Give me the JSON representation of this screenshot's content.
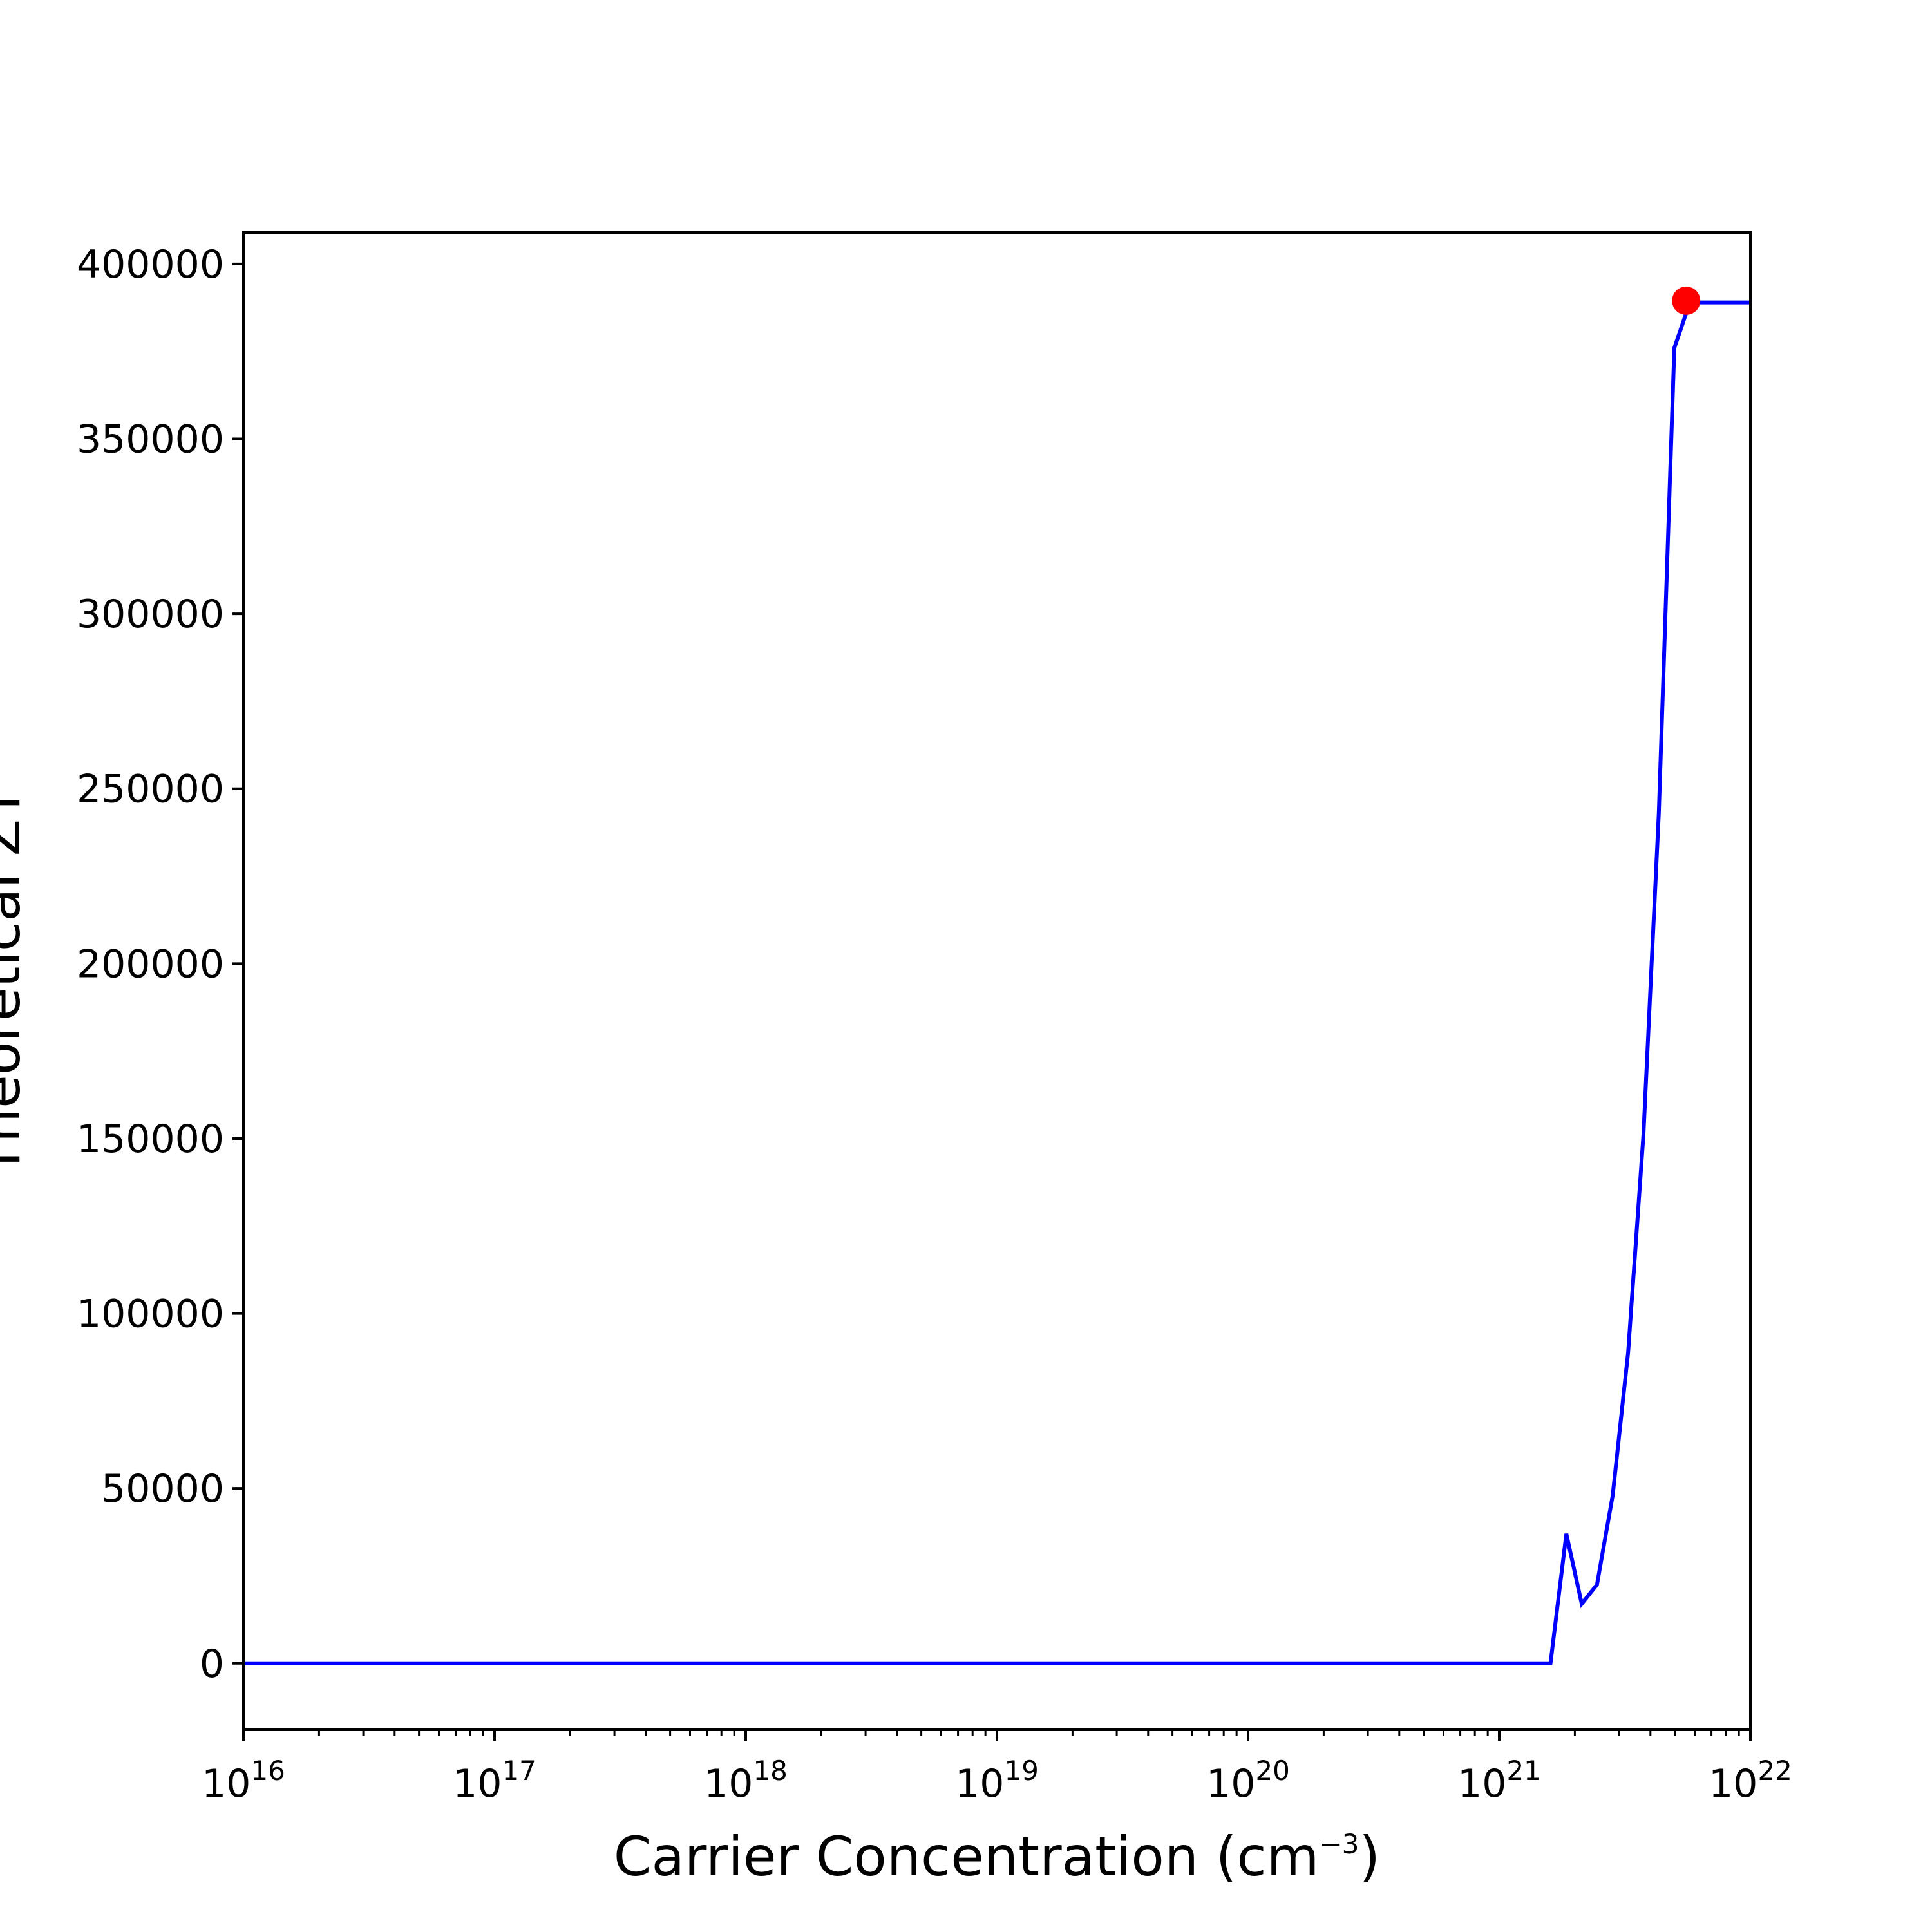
{
  "chart_data": {
    "type": "line",
    "xlabel": {
      "text": "Carrier Concentration (cm",
      "sup": "−3",
      "close": ")"
    },
    "ylabel": "Theoretical ZT",
    "xscale": "log",
    "xlim": [
      1e+16,
      1e+22
    ],
    "ylim": [
      -19000,
      409000
    ],
    "x_ticks": [
      {
        "base": "10",
        "exp": "16"
      },
      {
        "base": "10",
        "exp": "17"
      },
      {
        "base": "10",
        "exp": "18"
      },
      {
        "base": "10",
        "exp": "19"
      },
      {
        "base": "10",
        "exp": "20"
      },
      {
        "base": "10",
        "exp": "21"
      },
      {
        "base": "10",
        "exp": "22"
      }
    ],
    "y_ticks": [
      "0",
      "50000",
      "100000",
      "150000",
      "200000",
      "250000",
      "300000",
      "350000",
      "400000"
    ],
    "grid": false,
    "series": [
      {
        "color": "#0000ff",
        "x": [
          1e+16,
          1.6e+21,
          1.85e+21,
          2.13e+21,
          2.45e+21,
          2.83e+21,
          3.26e+21,
          3.75e+21,
          4.32e+21,
          4.98e+21,
          5.74e+21,
          6.6e+21,
          1e+22
        ],
        "y": [
          0,
          0,
          37000,
          17000,
          22500,
          48000,
          89000,
          151000,
          243000,
          376000,
          389000,
          389000,
          389000
        ]
      }
    ],
    "highlight_point": {
      "x": 5.55e+21,
      "y": 389500,
      "color": "#ff0000"
    }
  }
}
